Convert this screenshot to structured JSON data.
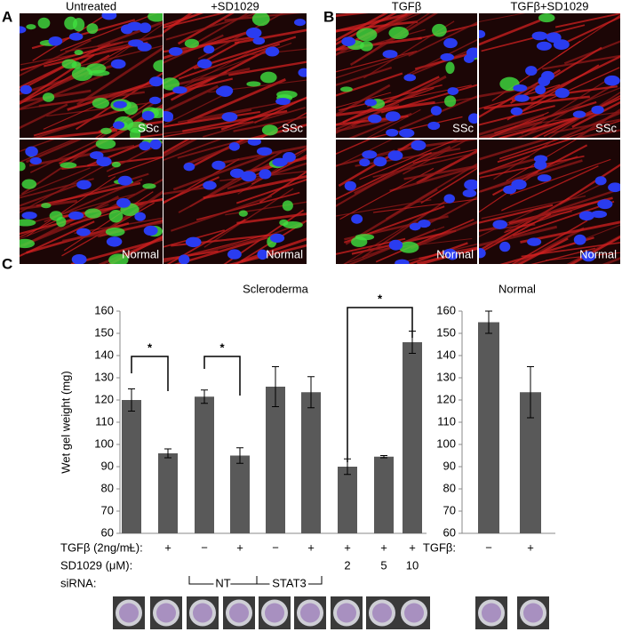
{
  "panel_labels": [
    "A",
    "B",
    "C"
  ],
  "panel_a": {
    "columns": [
      "Untreated",
      "+SD1029"
    ],
    "image_labels": [
      "SSc",
      "SSc",
      "Normal",
      "Normal"
    ]
  },
  "panel_b": {
    "columns": [
      "TGFβ",
      "TGFβ+SD1029"
    ],
    "image_labels": [
      "SSc",
      "SSc",
      "Normal",
      "Normal"
    ]
  },
  "chart_data": [
    {
      "type": "bar",
      "title": "Scleroderma",
      "y_label": "Wet gel weight (mg)",
      "values": [
        120,
        96,
        121.5,
        95,
        126,
        123.5,
        90,
        94.5,
        146
      ],
      "errors": [
        5,
        2,
        3,
        3.5,
        9,
        7,
        3.5,
        0.5,
        5
      ],
      "color": "#595959",
      "ylim": [
        60,
        160
      ],
      "yticks": [
        60,
        70,
        80,
        90,
        100,
        110,
        120,
        130,
        140,
        150,
        160
      ],
      "annotations": [
        "*",
        "*",
        "*"
      ],
      "condition_rows": [
        {
          "label": "TGFβ (2ng/mL):",
          "cells": [
            "−",
            "+",
            "−",
            "+",
            "−",
            "+",
            "+",
            "+",
            "+"
          ]
        },
        {
          "label": "SD1029 (μM):",
          "cells": [
            null,
            null,
            null,
            null,
            null,
            null,
            2,
            5,
            10
          ]
        },
        {
          "label": "siRNA:",
          "groups": [
            "NT",
            "STAT3"
          ]
        }
      ]
    },
    {
      "type": "bar",
      "title": "Normal",
      "values": [
        155,
        123.5
      ],
      "errors": [
        5,
        11.5
      ],
      "color": "#595959",
      "ylim": [
        60,
        160
      ],
      "yticks": [
        60,
        70,
        80,
        90,
        100,
        110,
        120,
        130,
        140,
        150,
        160
      ],
      "condition_rows": [
        {
          "label": "TGFβ:",
          "cells": [
            "−",
            "+"
          ]
        }
      ]
    }
  ]
}
